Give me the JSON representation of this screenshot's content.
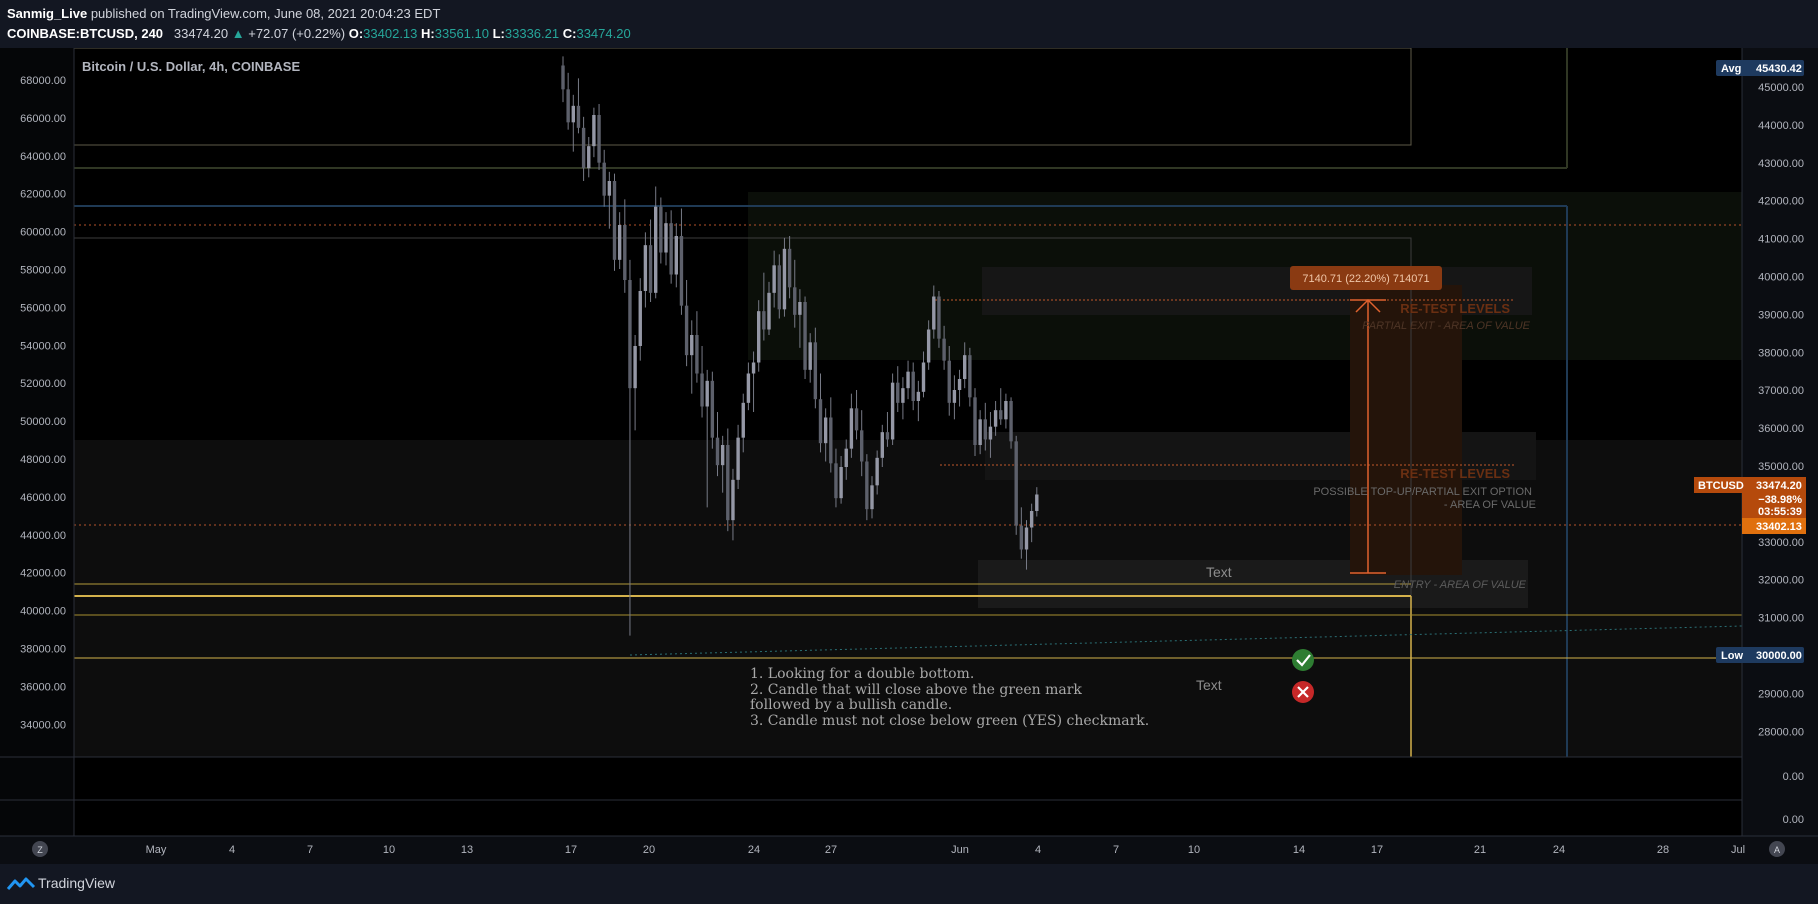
{
  "header": {
    "publisher": "Sanmig_Live",
    "published_text": "published on TradingView.com, June 08, 2021 20:04:23 EDT",
    "symbol": "COINBASE:BTCUSD, 240",
    "last": "33474.20",
    "change": "+72.07 (+0.22%)",
    "o_label": "O:",
    "o": "33402.13",
    "h_label": "H:",
    "h": "33561.10",
    "l_label": "L:",
    "l": "33336.21",
    "c_label": "C:",
    "c": "33474.20"
  },
  "chart_title": "Bitcoin / U.S. Dollar, 4h, COINBASE",
  "colors": {
    "accent": "#ff6d00",
    "up": "#26a69a",
    "candle": "#8f92a0",
    "yellow": "#d4b24c"
  },
  "annotations": {
    "measure_label": "7140.71 (22.20%) 714071",
    "retest_1": "RE-TEST LEVELS",
    "retest_1_sub": "PARTIAL EXIT - AREA OF VALUE",
    "retest_2": "RE-TEST LEVELS",
    "retest_2_sub1": "POSSIBLE TOP-UP/PARTIAL EXIT OPTION",
    "retest_2_sub2": "- AREA OF VALUE",
    "entry": "ENTRY - AREA OF VALUE",
    "text_1": "Text",
    "text_2": "Text",
    "notes": [
      "1. Looking for a double bottom.",
      "2. Candle that will close above the green mark",
      "followed by a bullish candle.",
      "3. Candle must not close below green (YES) checkmark."
    ]
  },
  "badges": {
    "avg_label": "Avg",
    "avg_value": "45430.42",
    "low_label": "Low",
    "low_value": "30000.00",
    "btc_label": "BTCUSD",
    "btc_value": "33474.20",
    "btc_change": "−38.98%",
    "btc_timer": "03:55:39",
    "prev_value": "33402.13"
  },
  "footer": {
    "brand": "TradingView",
    "zoom_button": "Z",
    "auto_button": "A"
  },
  "chart_data": {
    "type": "candlestick",
    "left_axis": {
      "ticks": [
        "68000.00",
        "66000.00",
        "64000.00",
        "62000.00",
        "60000.00",
        "58000.00",
        "56000.00",
        "54000.00",
        "52000.00",
        "50000.00",
        "48000.00",
        "46000.00",
        "44000.00",
        "42000.00",
        "40000.00",
        "38000.00",
        "36000.00",
        "34000.00"
      ],
      "range": [
        32800,
        68800
      ]
    },
    "right_axis": {
      "ticks": [
        "45000.00",
        "44000.00",
        "43000.00",
        "42000.00",
        "41000.00",
        "40000.00",
        "39000.00",
        "38000.00",
        "37000.00",
        "36000.00",
        "35000.00",
        "34000.00",
        "33000.00",
        "32000.00",
        "31000.00",
        "30000.00",
        "29000.00",
        "28000.00"
      ]
    },
    "volume_axis": {
      "ticks": [
        "0.00",
        "0.00"
      ]
    },
    "x_ticks": [
      "May",
      "4",
      "7",
      "10",
      "13",
      "17",
      "20",
      "24",
      "27",
      "Jun",
      "4",
      "7",
      "10",
      "14",
      "17",
      "21",
      "24",
      "28",
      "Jul"
    ],
    "ohlc": [
      [
        68500,
        69000,
        66500,
        67200
      ],
      [
        67200,
        68100,
        65000,
        65400
      ],
      [
        65400,
        66900,
        63800,
        66300
      ],
      [
        66300,
        67800,
        64800,
        65100
      ],
      [
        65100,
        65700,
        62200,
        62900
      ],
      [
        62900,
        64600,
        62400,
        64100
      ],
      [
        64100,
        66200,
        63500,
        65800
      ],
      [
        65800,
        66400,
        62800,
        63200
      ],
      [
        63200,
        63900,
        60800,
        61400
      ],
      [
        61400,
        62700,
        59600,
        62200
      ],
      [
        62200,
        62600,
        57300,
        57900
      ],
      [
        57900,
        60500,
        57400,
        59800
      ],
      [
        59800,
        61200,
        56100,
        56800
      ],
      [
        56800,
        57900,
        37400,
        50900
      ],
      [
        50900,
        53800,
        48600,
        53200
      ],
      [
        53200,
        56900,
        52400,
        56200
      ],
      [
        56200,
        59400,
        55300,
        58700
      ],
      [
        58700,
        60100,
        55600,
        56100
      ],
      [
        56100,
        61900,
        55800,
        60800
      ],
      [
        60800,
        61300,
        57700,
        58300
      ],
      [
        58300,
        60500,
        57600,
        59900
      ],
      [
        59900,
        60600,
        56600,
        57100
      ],
      [
        57100,
        59900,
        56400,
        59200
      ],
      [
        59200,
        60700,
        54900,
        55400
      ],
      [
        55400,
        56800,
        52100,
        52700
      ],
      [
        52700,
        54600,
        50600,
        53800
      ],
      [
        53800,
        55100,
        51200,
        51700
      ],
      [
        51700,
        53200,
        49300,
        49900
      ],
      [
        49900,
        51900,
        44400,
        51300
      ],
      [
        51300,
        51800,
        47600,
        48200
      ],
      [
        48200,
        49600,
        46100,
        46700
      ],
      [
        46700,
        48300,
        45200,
        47800
      ],
      [
        47800,
        48700,
        43100,
        43700
      ],
      [
        43700,
        46500,
        42600,
        45900
      ],
      [
        45900,
        48900,
        45400,
        48200
      ],
      [
        48200,
        50600,
        47400,
        50100
      ],
      [
        50100,
        52300,
        49700,
        51700
      ],
      [
        51700,
        52900,
        49600,
        52300
      ],
      [
        52300,
        55700,
        51800,
        55100
      ],
      [
        55100,
        57200,
        53500,
        54100
      ],
      [
        54100,
        56700,
        53800,
        56100
      ],
      [
        56100,
        58400,
        55300,
        57600
      ],
      [
        57600,
        58200,
        54700,
        55200
      ],
      [
        55200,
        59100,
        54800,
        58500
      ],
      [
        58500,
        59200,
        55800,
        56400
      ],
      [
        56400,
        57900,
        54200,
        54900
      ],
      [
        54900,
        56300,
        53100,
        55600
      ],
      [
        55600,
        55900,
        51400,
        51900
      ],
      [
        51900,
        53900,
        51200,
        53400
      ],
      [
        53400,
        54200,
        49800,
        50300
      ],
      [
        50300,
        51700,
        47400,
        47900
      ],
      [
        47900,
        49800,
        46900,
        49300
      ],
      [
        49300,
        50400,
        46300,
        46800
      ],
      [
        46800,
        47600,
        44400,
        44900
      ],
      [
        44900,
        47200,
        44600,
        46600
      ],
      [
        46600,
        48100,
        45900,
        47600
      ],
      [
        47600,
        50600,
        47100,
        49800
      ],
      [
        49800,
        50800,
        48100,
        48600
      ],
      [
        48600,
        49700,
        46100,
        46900
      ],
      [
        46900,
        47300,
        43700,
        44300
      ],
      [
        44300,
        46100,
        43800,
        45600
      ],
      [
        45600,
        47500,
        45100,
        47100
      ],
      [
        47100,
        48900,
        46600,
        48500
      ],
      [
        48500,
        49600,
        47700,
        48100
      ],
      [
        48100,
        51700,
        47800,
        51200
      ],
      [
        51200,
        52100,
        49600,
        50100
      ],
      [
        50100,
        51500,
        49200,
        50900
      ],
      [
        50900,
        52400,
        50300,
        51800
      ],
      [
        51800,
        52300,
        49700,
        50200
      ],
      [
        50200,
        51300,
        49100,
        50700
      ],
      [
        50700,
        52900,
        50400,
        52300
      ],
      [
        52300,
        54600,
        51900,
        54100
      ],
      [
        54100,
        56500,
        53600,
        55900
      ],
      [
        55900,
        56200,
        53100,
        53600
      ],
      [
        53600,
        54300,
        51900,
        52400
      ],
      [
        52400,
        53200,
        49400,
        50100
      ],
      [
        50100,
        51600,
        49200,
        50800
      ],
      [
        50800,
        51900,
        49900,
        51400
      ],
      [
        51400,
        53400,
        50900,
        52700
      ],
      [
        52700,
        53100,
        49900,
        50400
      ],
      [
        50400,
        50900,
        47200,
        47800
      ],
      [
        47800,
        49700,
        47300,
        49200
      ],
      [
        49200,
        50100,
        47500,
        48100
      ],
      [
        48100,
        49600,
        47100,
        48800
      ],
      [
        48800,
        50200,
        48300,
        49700
      ],
      [
        49700,
        50900,
        48900,
        49200
      ],
      [
        49200,
        50600,
        48700,
        50200
      ],
      [
        50200,
        50400,
        47600,
        48000
      ],
      [
        48000,
        48300,
        42900,
        43400
      ],
      [
        43400,
        44400,
        41600,
        42100
      ],
      [
        42100,
        43700,
        41000,
        43300
      ],
      [
        43300,
        44600,
        42500,
        44200
      ],
      [
        44200,
        45500,
        43900,
        45100
      ]
    ]
  }
}
